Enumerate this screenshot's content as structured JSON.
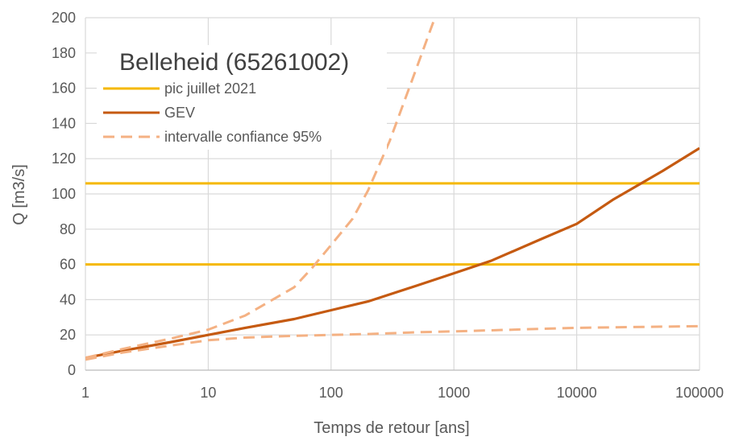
{
  "chart_data": {
    "type": "line",
    "title": "Belleheid (65261002)",
    "xlabel": "Temps de retour [ans]",
    "ylabel": "Q [m3/s]",
    "xscale": "log",
    "xlim": [
      1,
      100000
    ],
    "ylim": [
      0,
      200
    ],
    "grid": true,
    "legend_position": "top-left",
    "x_ticks": [
      "1",
      "10",
      "100",
      "1000",
      "10000",
      "100000"
    ],
    "y_ticks": [
      "0",
      "20",
      "40",
      "60",
      "80",
      "100",
      "120",
      "140",
      "160",
      "180",
      "200"
    ],
    "legend": [
      {
        "label": "pic juillet 2021",
        "color": "#f5b800",
        "style": "solid"
      },
      {
        "label": "GEV",
        "color": "#c55a11",
        "style": "solid"
      },
      {
        "label": "intervalle confiance 95%",
        "color": "#f4b183",
        "style": "dashed"
      }
    ],
    "series": [
      {
        "name": "pic juillet 2021",
        "color": "#f5b800",
        "style": "solid",
        "x": [
          1,
          100000
        ],
        "y": [
          106,
          106
        ]
      },
      {
        "name": "pic juillet 2021",
        "color": "#f5b800",
        "style": "solid",
        "x": [
          1,
          100000
        ],
        "y": [
          60,
          60
        ]
      },
      {
        "name": "GEV",
        "color": "#c55a11",
        "style": "solid",
        "x": [
          1,
          2,
          5,
          10,
          20,
          50,
          100,
          200,
          500,
          1000,
          2000,
          5000,
          10000,
          20000,
          50000,
          100000
        ],
        "y": [
          7,
          11,
          16,
          20,
          24,
          29,
          34,
          39,
          48,
          55,
          62,
          74,
          83,
          97,
          113,
          126
        ]
      },
      {
        "name": "intervalle confiance 95%",
        "color": "#f4b183",
        "style": "dashed",
        "x": [
          1,
          2,
          5,
          10,
          20,
          50,
          70,
          100,
          150,
          200,
          300,
          500,
          700
        ],
        "y": [
          7,
          12,
          18,
          23,
          31,
          47,
          58,
          71,
          86,
          102,
          130,
          172,
          200
        ]
      },
      {
        "name": "intervalle confiance 95%",
        "color": "#f4b183",
        "style": "dashed",
        "x": [
          1,
          2,
          5,
          10,
          20,
          50,
          100,
          200,
          500,
          1000,
          10000,
          100000
        ],
        "y": [
          6,
          10,
          14,
          17,
          18.5,
          19.5,
          20,
          20.5,
          21.5,
          22,
          24,
          25
        ]
      }
    ]
  }
}
